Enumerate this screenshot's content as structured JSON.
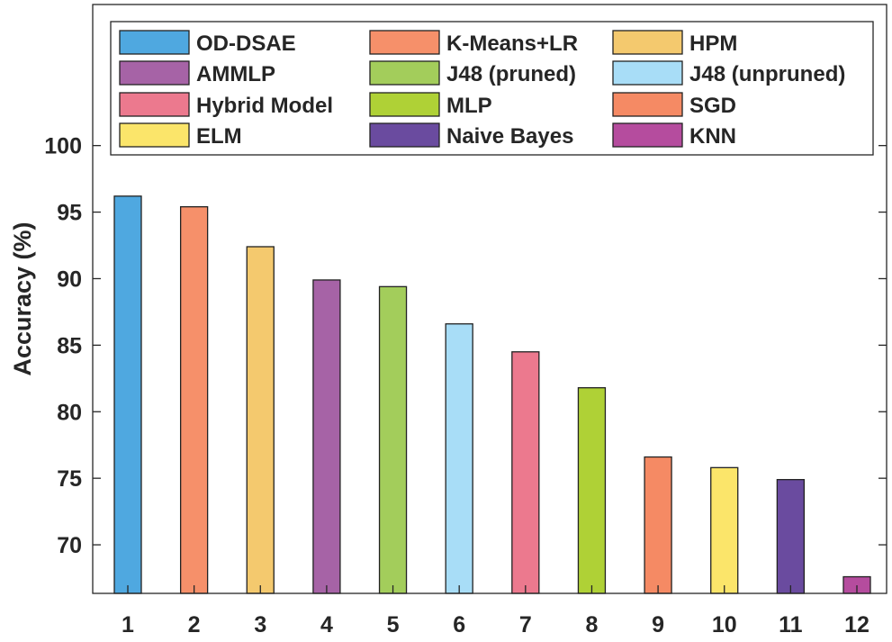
{
  "chart_data": {
    "type": "bar",
    "title": "",
    "xlabel": "",
    "ylabel": "Accuracy (%)",
    "categories": [
      "1",
      "2",
      "3",
      "4",
      "5",
      "6",
      "7",
      "8",
      "9",
      "10",
      "11",
      "12"
    ],
    "yticks": [
      70,
      75,
      80,
      85,
      90,
      95,
      100
    ],
    "ylim": [
      66.35,
      110.6
    ],
    "grid": false,
    "legend_placement": "top",
    "series": [
      {
        "name": "OD-DSAE",
        "value": 96.2,
        "color": "#4fa8e0"
      },
      {
        "name": "K-Means+LR",
        "value": 95.4,
        "color": "#f6906a"
      },
      {
        "name": "HPM",
        "value": 92.4,
        "color": "#f4c96e"
      },
      {
        "name": "AMMLP",
        "value": 89.9,
        "color": "#a663a6"
      },
      {
        "name": "J48 (pruned)",
        "value": 89.4,
        "color": "#a3cd5b"
      },
      {
        "name": "J48 (unpruned)",
        "value": 86.6,
        "color": "#a8ddf7"
      },
      {
        "name": "Hybrid Model",
        "value": 84.5,
        "color": "#ec798e"
      },
      {
        "name": "MLP",
        "value": 81.8,
        "color": "#afd136"
      },
      {
        "name": "SGD",
        "value": 76.6,
        "color": "#f58a64"
      },
      {
        "name": "ELM",
        "value": 75.8,
        "color": "#fbe56a"
      },
      {
        "name": "Naive Bayes",
        "value": 74.9,
        "color": "#6a4b9f"
      },
      {
        "name": "KNN",
        "value": 67.6,
        "color": "#b54c9e"
      }
    ]
  }
}
